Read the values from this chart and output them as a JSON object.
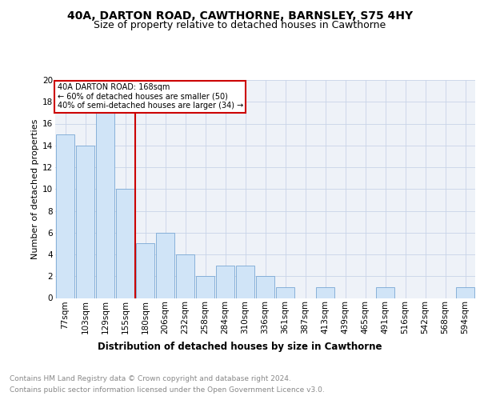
{
  "title1": "40A, DARTON ROAD, CAWTHORNE, BARNSLEY, S75 4HY",
  "title2": "Size of property relative to detached houses in Cawthorne",
  "xlabel": "Distribution of detached houses by size in Cawthorne",
  "ylabel": "Number of detached properties",
  "categories": [
    "77sqm",
    "103sqm",
    "129sqm",
    "155sqm",
    "180sqm",
    "206sqm",
    "232sqm",
    "258sqm",
    "284sqm",
    "310sqm",
    "336sqm",
    "361sqm",
    "387sqm",
    "413sqm",
    "439sqm",
    "465sqm",
    "491sqm",
    "516sqm",
    "542sqm",
    "568sqm",
    "594sqm"
  ],
  "values": [
    15,
    14,
    17,
    10,
    5,
    6,
    4,
    2,
    3,
    3,
    2,
    1,
    0,
    1,
    0,
    0,
    1,
    0,
    0,
    0,
    1
  ],
  "bar_color": "#d0e4f7",
  "bar_edge_color": "#7aa8d4",
  "vline_x": 3.5,
  "vline_color": "#cc0000",
  "annotation_text": "40A DARTON ROAD: 168sqm\n← 60% of detached houses are smaller (50)\n40% of semi-detached houses are larger (34) →",
  "annotation_box_color": "#cc0000",
  "ylim": [
    0,
    20
  ],
  "yticks": [
    0,
    2,
    4,
    6,
    8,
    10,
    12,
    14,
    16,
    18,
    20
  ],
  "grid_color": "#c8d4e8",
  "background_color": "#eef2f8",
  "footer1": "Contains HM Land Registry data © Crown copyright and database right 2024.",
  "footer2": "Contains public sector information licensed under the Open Government Licence v3.0.",
  "title1_fontsize": 10,
  "title2_fontsize": 9,
  "xlabel_fontsize": 8.5,
  "ylabel_fontsize": 8,
  "tick_fontsize": 7.5,
  "footer_fontsize": 6.5
}
